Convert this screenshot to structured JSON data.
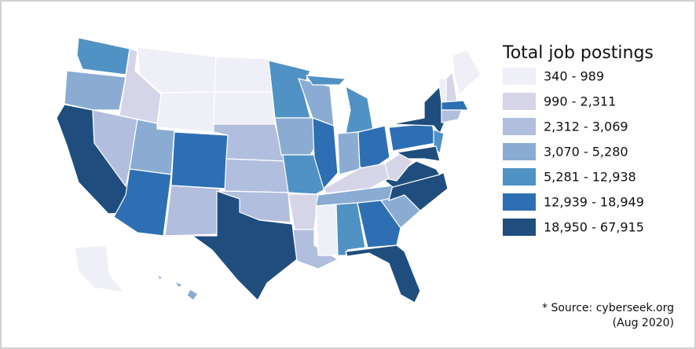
{
  "legend": {
    "title": "Total job postings",
    "items": [
      {
        "label": "340 - 989",
        "color": "#efeff7"
      },
      {
        "label": "990 - 2,311",
        "color": "#d6d5e8"
      },
      {
        "label": "2,312 - 3,069",
        "color": "#b2bedd"
      },
      {
        "label": "3,070 - 5,280",
        "color": "#8aacd2"
      },
      {
        "label": "5,281 - 12,938",
        "color": "#5092c4"
      },
      {
        "label": "12,939 - 18,949",
        "color": "#2e6fb4"
      },
      {
        "label": "18,950 - 67,915",
        "color": "#1f4e7e"
      }
    ]
  },
  "source": {
    "lines": [
      "* Source: cyberseek.org",
      "(Aug 2020)"
    ]
  }
}
